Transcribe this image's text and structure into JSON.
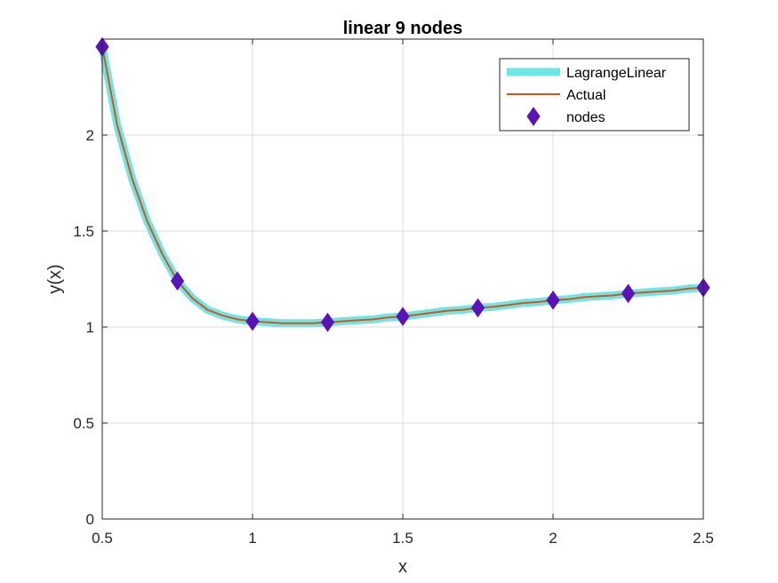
{
  "chart_data": {
    "type": "line",
    "title": "linear 9 nodes",
    "xlabel": "x",
    "ylabel": "y(x)",
    "xlim": [
      0.5,
      2.5
    ],
    "ylim": [
      0,
      2.5
    ],
    "xticks": [
      0.5,
      1,
      1.5,
      2,
      2.5
    ],
    "xtick_labels": [
      "0.5",
      "1",
      "1.5",
      "2",
      "2.5"
    ],
    "yticks": [
      0,
      0.5,
      1,
      1.5,
      2
    ],
    "ytick_labels": [
      "0",
      "0.5",
      "1",
      "1.5",
      "2"
    ],
    "grid": true,
    "legend_position": "top-right",
    "series": [
      {
        "name": "LagrangeLinear",
        "style": "line",
        "color": "#6ee6e6",
        "x": [
          0.5,
          0.55,
          0.6,
          0.65,
          0.7,
          0.75,
          0.8,
          0.85,
          0.9,
          0.95,
          1.0,
          1.05,
          1.1,
          1.15,
          1.2,
          1.25,
          1.3,
          1.35,
          1.4,
          1.45,
          1.5,
          1.55,
          1.6,
          1.65,
          1.7,
          1.75,
          1.8,
          1.85,
          1.9,
          1.95,
          2.0,
          2.05,
          2.1,
          2.15,
          2.2,
          2.25,
          2.3,
          2.35,
          2.4,
          2.45,
          2.5
        ],
        "y": [
          2.46,
          2.05,
          1.77,
          1.55,
          1.38,
          1.24,
          1.15,
          1.09,
          1.06,
          1.04,
          1.03,
          1.025,
          1.02,
          1.02,
          1.02,
          1.025,
          1.03,
          1.035,
          1.04,
          1.05,
          1.055,
          1.065,
          1.075,
          1.085,
          1.09,
          1.1,
          1.105,
          1.115,
          1.125,
          1.13,
          1.14,
          1.145,
          1.155,
          1.16,
          1.165,
          1.175,
          1.18,
          1.185,
          1.19,
          1.2,
          1.205
        ]
      },
      {
        "name": "Actual",
        "style": "line",
        "color": "#d95319",
        "x": [
          0.5,
          0.55,
          0.6,
          0.65,
          0.7,
          0.75,
          0.8,
          0.85,
          0.9,
          0.95,
          1.0,
          1.05,
          1.1,
          1.15,
          1.2,
          1.25,
          1.3,
          1.35,
          1.4,
          1.45,
          1.5,
          1.55,
          1.6,
          1.65,
          1.7,
          1.75,
          1.8,
          1.85,
          1.9,
          1.95,
          2.0,
          2.05,
          2.1,
          2.15,
          2.2,
          2.25,
          2.3,
          2.35,
          2.4,
          2.45,
          2.5
        ],
        "y": [
          2.46,
          2.05,
          1.77,
          1.55,
          1.38,
          1.24,
          1.15,
          1.09,
          1.06,
          1.04,
          1.03,
          1.025,
          1.02,
          1.02,
          1.02,
          1.025,
          1.03,
          1.035,
          1.04,
          1.05,
          1.055,
          1.065,
          1.075,
          1.085,
          1.09,
          1.1,
          1.105,
          1.115,
          1.125,
          1.13,
          1.14,
          1.145,
          1.155,
          1.16,
          1.165,
          1.175,
          1.18,
          1.185,
          1.19,
          1.2,
          1.205
        ]
      },
      {
        "name": "nodes",
        "style": "marker",
        "marker": "diamond",
        "color": "#5a14b4",
        "x": [
          0.5,
          0.75,
          1.0,
          1.25,
          1.5,
          1.75,
          2.0,
          2.25,
          2.5
        ],
        "y": [
          2.46,
          1.24,
          1.03,
          1.025,
          1.055,
          1.1,
          1.14,
          1.175,
          1.205
        ]
      }
    ]
  }
}
